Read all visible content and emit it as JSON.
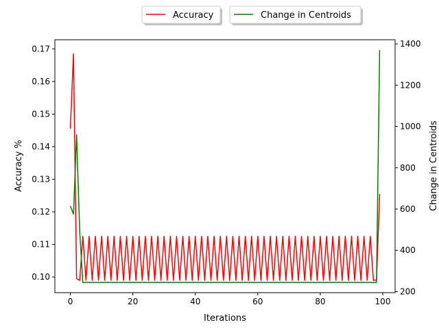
{
  "chart_data": {
    "type": "line",
    "xlabel": "Iterations",
    "ylabel_left": "Accuracy %",
    "ylabel_right": "Change in Centroids",
    "xlim": [
      -4.95,
      103.95
    ],
    "ylim_left": [
      0.0952,
      0.1728
    ],
    "ylim_right": [
      195,
      1420
    ],
    "x_ticks": [
      0,
      20,
      40,
      60,
      80,
      100
    ],
    "y_ticks_left": [
      0.1,
      0.11,
      0.12,
      0.13,
      0.14,
      0.15,
      0.16,
      0.17
    ],
    "y_ticks_left_labels": [
      "0.10",
      "0.11",
      "0.12",
      "0.13",
      "0.14",
      "0.15",
      "0.16",
      "0.17"
    ],
    "y_ticks_right": [
      200,
      400,
      600,
      800,
      1000,
      1200,
      1400
    ],
    "grid": false,
    "legend_placement": "top-center, outside above plot",
    "series": [
      {
        "name": "Accuracy",
        "axis": "left",
        "color": "#ff0000",
        "x": [
          0,
          1,
          2,
          3,
          4,
          5,
          6,
          7,
          8,
          9,
          10,
          11,
          12,
          13,
          14,
          15,
          16,
          17,
          18,
          19,
          20,
          21,
          22,
          23,
          24,
          25,
          26,
          27,
          28,
          29,
          30,
          31,
          32,
          33,
          34,
          35,
          36,
          37,
          38,
          39,
          40,
          41,
          42,
          43,
          44,
          45,
          46,
          47,
          48,
          49,
          50,
          51,
          52,
          53,
          54,
          55,
          56,
          57,
          58,
          59,
          60,
          61,
          62,
          63,
          64,
          65,
          66,
          67,
          68,
          69,
          70,
          71,
          72,
          73,
          74,
          75,
          76,
          77,
          78,
          79,
          80,
          81,
          82,
          83,
          84,
          85,
          86,
          87,
          88,
          89,
          90,
          91,
          92,
          93,
          94,
          95,
          96,
          97,
          98,
          99
        ],
        "y": [
          0.1455,
          0.1685,
          0.0995,
          0.099,
          0.1125,
          0.099,
          0.1125,
          0.099,
          0.1125,
          0.099,
          0.1125,
          0.099,
          0.1125,
          0.099,
          0.1125,
          0.099,
          0.1125,
          0.099,
          0.1125,
          0.099,
          0.1125,
          0.099,
          0.1125,
          0.099,
          0.1125,
          0.099,
          0.1125,
          0.099,
          0.1125,
          0.099,
          0.1125,
          0.099,
          0.1125,
          0.099,
          0.1125,
          0.099,
          0.1125,
          0.099,
          0.1125,
          0.099,
          0.1125,
          0.099,
          0.1125,
          0.099,
          0.1125,
          0.099,
          0.1125,
          0.099,
          0.1125,
          0.099,
          0.1125,
          0.099,
          0.1125,
          0.099,
          0.1125,
          0.099,
          0.1125,
          0.099,
          0.1125,
          0.099,
          0.1125,
          0.099,
          0.1125,
          0.099,
          0.1125,
          0.099,
          0.1125,
          0.099,
          0.1125,
          0.099,
          0.1125,
          0.099,
          0.1125,
          0.099,
          0.1125,
          0.099,
          0.1125,
          0.099,
          0.1125,
          0.099,
          0.1125,
          0.099,
          0.1125,
          0.099,
          0.1125,
          0.099,
          0.1125,
          0.099,
          0.1125,
          0.099,
          0.1125,
          0.099,
          0.1125,
          0.099,
          0.1125,
          0.099,
          0.1125,
          0.099,
          0.099,
          0.1255
        ]
      },
      {
        "name": "Change in Centroids",
        "axis": "right",
        "color": "#008000",
        "x": [
          0,
          1,
          2,
          3,
          4,
          5,
          6,
          7,
          8,
          9,
          10,
          11,
          12,
          13,
          14,
          15,
          16,
          17,
          18,
          19,
          20,
          21,
          22,
          23,
          24,
          25,
          26,
          27,
          28,
          29,
          30,
          31,
          32,
          33,
          34,
          35,
          36,
          37,
          38,
          39,
          40,
          41,
          42,
          43,
          44,
          45,
          46,
          47,
          48,
          49,
          50,
          51,
          52,
          53,
          54,
          55,
          56,
          57,
          58,
          59,
          60,
          61,
          62,
          63,
          64,
          65,
          66,
          67,
          68,
          69,
          70,
          71,
          72,
          73,
          74,
          75,
          76,
          77,
          78,
          79,
          80,
          81,
          82,
          83,
          84,
          85,
          86,
          87,
          88,
          89,
          90,
          91,
          92,
          93,
          94,
          95,
          96,
          97,
          98,
          99
        ],
        "y": [
          615,
          575,
          960,
          490,
          245,
          245,
          245,
          245,
          245,
          245,
          245,
          245,
          245,
          245,
          245,
          245,
          245,
          245,
          245,
          245,
          245,
          245,
          245,
          245,
          245,
          245,
          245,
          245,
          245,
          245,
          245,
          245,
          245,
          245,
          245,
          245,
          245,
          245,
          245,
          245,
          245,
          245,
          245,
          245,
          245,
          245,
          245,
          245,
          245,
          245,
          245,
          245,
          245,
          245,
          245,
          245,
          245,
          245,
          245,
          245,
          245,
          245,
          245,
          245,
          245,
          245,
          245,
          245,
          245,
          245,
          245,
          245,
          245,
          245,
          245,
          245,
          245,
          245,
          245,
          245,
          245,
          245,
          245,
          245,
          245,
          245,
          245,
          245,
          245,
          245,
          245,
          245,
          245,
          245,
          245,
          245,
          245,
          245,
          245,
          1370
        ]
      }
    ]
  }
}
